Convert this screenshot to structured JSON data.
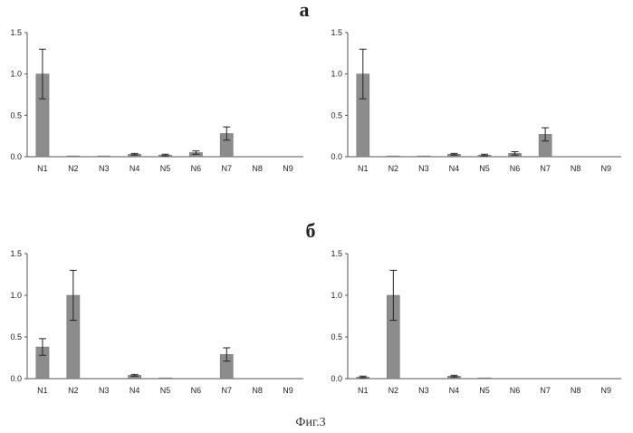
{
  "figure": {
    "caption": "Фиг.3",
    "panel_labels": [
      "а",
      "б"
    ]
  },
  "style": {
    "bar_color": "#8c8c8c",
    "axis_color": "#555555",
    "error_color": "#222222"
  },
  "chart_data": [
    {
      "type": "bar",
      "panel": "а",
      "categories": [
        "N1",
        "N2",
        "N3",
        "N4",
        "N5",
        "N6",
        "N7",
        "N8",
        "N9"
      ],
      "values": [
        1.0,
        0.01,
        0.01,
        0.03,
        0.02,
        0.05,
        0.28,
        0.0,
        0.0
      ],
      "errors": [
        0.3,
        0.0,
        0.0,
        0.01,
        0.01,
        0.02,
        0.08,
        0.0,
        0.0
      ],
      "ylim": [
        0,
        1.5
      ],
      "yticks": [
        "1.5",
        "1.0",
        "0.5",
        "0.0"
      ],
      "ytick_values": [
        1.5,
        1.0,
        0.5,
        0.0
      ]
    },
    {
      "type": "bar",
      "panel": "а",
      "categories": [
        "N1",
        "N2",
        "N3",
        "N4",
        "N5",
        "N6",
        "N7",
        "N8",
        "N9"
      ],
      "values": [
        1.0,
        0.01,
        0.01,
        0.03,
        0.02,
        0.04,
        0.27,
        0.0,
        0.0
      ],
      "errors": [
        0.3,
        0.0,
        0.0,
        0.01,
        0.01,
        0.02,
        0.08,
        0.0,
        0.0
      ],
      "ylim": [
        0,
        1.5
      ],
      "yticks": [
        "1.5",
        "1.0",
        "0.5",
        "0.0"
      ],
      "ytick_values": [
        1.5,
        1.0,
        0.5,
        0.0
      ]
    },
    {
      "type": "bar",
      "panel": "б",
      "categories": [
        "N1",
        "N2",
        "N3",
        "N4",
        "N5",
        "N6",
        "N7",
        "N8",
        "N9"
      ],
      "values": [
        0.38,
        1.0,
        0.0,
        0.04,
        0.01,
        0.0,
        0.29,
        0.0,
        0.0
      ],
      "errors": [
        0.1,
        0.3,
        0.0,
        0.01,
        0.0,
        0.0,
        0.08,
        0.0,
        0.0
      ],
      "ylim": [
        0,
        1.5
      ],
      "yticks": [
        "1.5",
        "1.0",
        "0.5",
        "0.0"
      ],
      "ytick_values": [
        1.5,
        1.0,
        0.5,
        0.0
      ]
    },
    {
      "type": "bar",
      "panel": "б",
      "categories": [
        "N1",
        "N2",
        "N3",
        "N4",
        "N5",
        "N6",
        "N7",
        "N8",
        "N9"
      ],
      "values": [
        0.02,
        1.0,
        0.0,
        0.03,
        0.01,
        0.0,
        0.0,
        0.0,
        0.0
      ],
      "errors": [
        0.01,
        0.3,
        0.0,
        0.01,
        0.0,
        0.0,
        0.0,
        0.0,
        0.0
      ],
      "ylim": [
        0,
        1.5
      ],
      "yticks": [
        "1.5",
        "1.0",
        "0.5",
        "0.0"
      ],
      "ytick_values": [
        1.5,
        1.0,
        0.5,
        0.0
      ]
    }
  ]
}
